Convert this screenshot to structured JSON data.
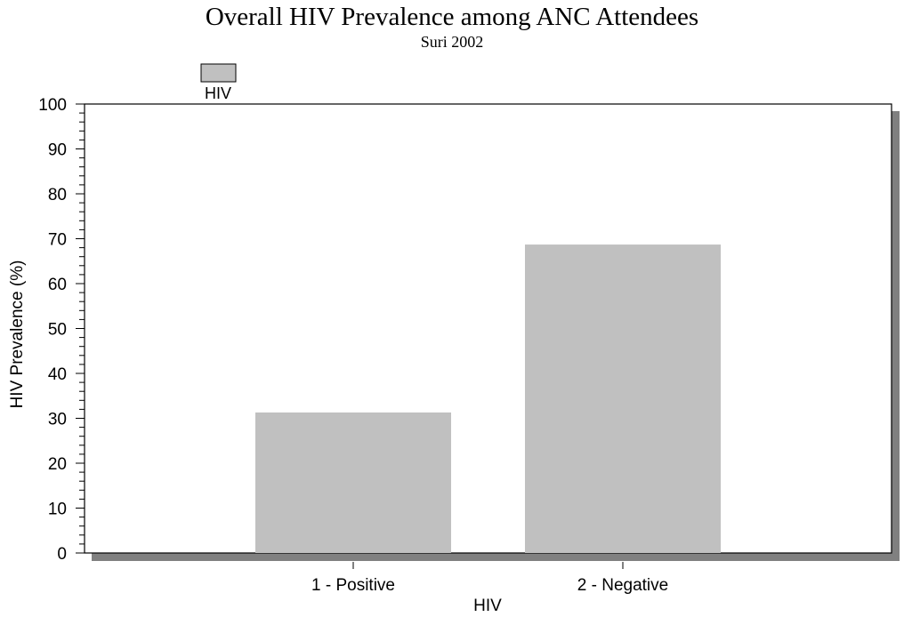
{
  "chart_data": {
    "type": "bar",
    "title": "Overall HIV Prevalence among ANC Attendees",
    "subtitle": "Suri 2002",
    "xlabel": "HIV",
    "ylabel": "HIV Prevalence (%)",
    "categories": [
      "1 - Positive",
      "2 - Negative"
    ],
    "series": [
      {
        "name": "HIV",
        "values": [
          31.3,
          68.7
        ]
      }
    ],
    "ylim": [
      0,
      100
    ],
    "yticks": [
      0,
      10,
      20,
      30,
      40,
      50,
      60,
      70,
      80,
      90,
      100
    ],
    "legend": "top-left",
    "grid": false,
    "colors": {
      "bar": "#c0c0c0",
      "legend_swatch": "#c0c0c0",
      "frame": "#000000",
      "shadow": "#808080"
    }
  }
}
